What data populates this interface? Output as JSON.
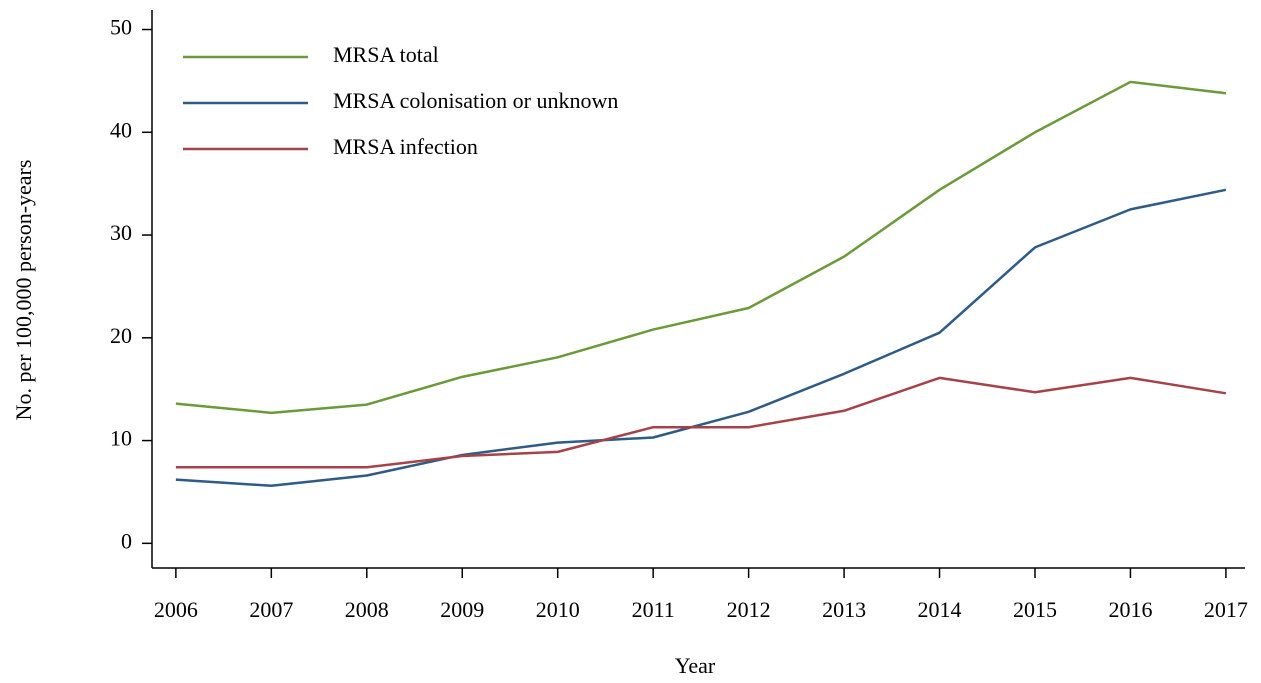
{
  "chart_data": {
    "type": "line",
    "xlabel": "Year",
    "ylabel": "No. per 100,000 person-years",
    "x": [
      2006,
      2007,
      2008,
      2009,
      2010,
      2011,
      2012,
      2013,
      2014,
      2015,
      2016,
      2017
    ],
    "series": [
      {
        "name": "MRSA total",
        "color": "#6a9a3a",
        "values": [
          13.6,
          12.7,
          13.5,
          16.2,
          18.1,
          20.8,
          22.9,
          27.9,
          34.4,
          40.0,
          44.9,
          43.8
        ]
      },
      {
        "name": "MRSA colonisation or unknown",
        "color": "#2f5b87",
        "values": [
          6.2,
          5.6,
          6.6,
          8.6,
          9.8,
          10.3,
          12.8,
          16.5,
          20.5,
          28.8,
          32.5,
          34.4
        ]
      },
      {
        "name": "MRSA infection",
        "color": "#a5424a",
        "values": [
          7.4,
          7.4,
          7.4,
          8.5,
          8.9,
          11.3,
          11.3,
          12.9,
          16.1,
          14.7,
          16.1,
          14.6
        ]
      }
    ],
    "xlim": [
      2005.75,
      2017.2
    ],
    "xticks": [
      2006,
      2007,
      2008,
      2009,
      2010,
      2011,
      2012,
      2013,
      2014,
      2015,
      2016,
      2017
    ],
    "ylim": [
      -2.4,
      51.9
    ],
    "yticks": [
      0,
      10,
      20,
      30,
      40,
      50
    ],
    "grid": false,
    "legend": "top-left"
  }
}
